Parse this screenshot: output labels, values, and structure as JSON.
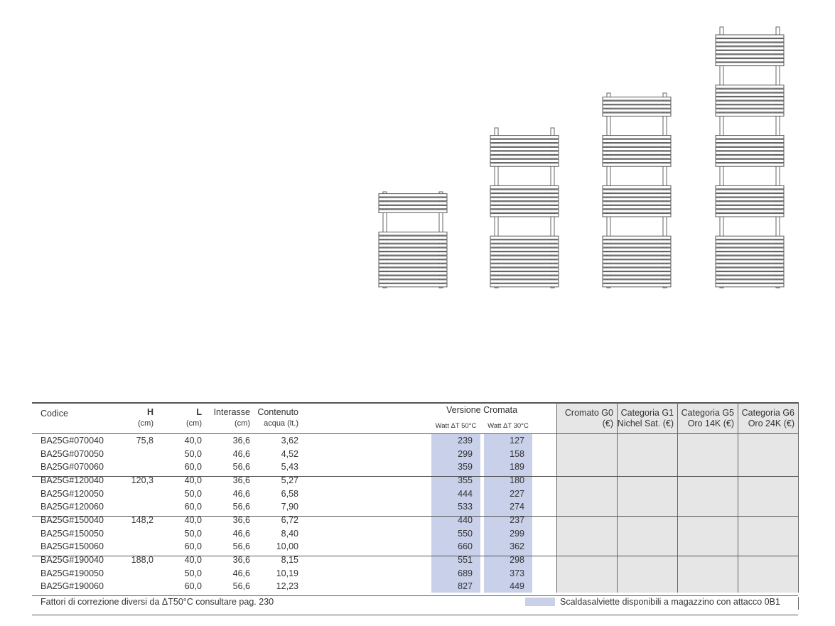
{
  "table": {
    "headers": {
      "codice": "Codice",
      "h": "H",
      "h_unit": "(cm)",
      "l": "L",
      "l_unit": "(cm)",
      "interasse": "Interasse",
      "interasse_unit": "(cm)",
      "contenuto": "Contenuto",
      "contenuto_unit": "acqua (lt.)",
      "versione": "Versione Cromata",
      "watt50": "Watt ΔT 50°C",
      "watt30": "Watt ΔT 30°C",
      "g0_line1": "Cromato G0",
      "g0_line2": "(€)",
      "g1_line1": "Categoria  G1",
      "g1_line2": "Nichel Sat. (€)",
      "g5_line1": "Categoria  G5",
      "g5_line2": "Oro 14K (€)",
      "g6_line1": "Categoria  G6",
      "g6_line2": "Oro 24K (€)"
    },
    "rows": [
      {
        "codice": "BA25G#070040",
        "h": "75,8",
        "l": "40,0",
        "interasse": "36,6",
        "contenuto": "3,62",
        "w50": "239",
        "w30": "127"
      },
      {
        "codice": "BA25G#070050",
        "h": "",
        "l": "50,0",
        "interasse": "46,6",
        "contenuto": "4,52",
        "w50": "299",
        "w30": "158"
      },
      {
        "codice": "BA25G#070060",
        "h": "",
        "l": "60,0",
        "interasse": "56,6",
        "contenuto": "5,43",
        "w50": "359",
        "w30": "189"
      },
      {
        "codice": "BA25G#120040",
        "h": "120,3",
        "l": "40,0",
        "interasse": "36,6",
        "contenuto": "5,27",
        "w50": "355",
        "w30": "180"
      },
      {
        "codice": "BA25G#120050",
        "h": "",
        "l": "50,0",
        "interasse": "46,6",
        "contenuto": "6,58",
        "w50": "444",
        "w30": "227"
      },
      {
        "codice": "BA25G#120060",
        "h": "",
        "l": "60,0",
        "interasse": "56,6",
        "contenuto": "7,90",
        "w50": "533",
        "w30": "274"
      },
      {
        "codice": "BA25G#150040",
        "h": "148,2",
        "l": "40,0",
        "interasse": "36,6",
        "contenuto": "6,72",
        "w50": "440",
        "w30": "237"
      },
      {
        "codice": "BA25G#150050",
        "h": "",
        "l": "50,0",
        "interasse": "46,6",
        "contenuto": "8,40",
        "w50": "550",
        "w30": "299"
      },
      {
        "codice": "BA25G#150060",
        "h": "",
        "l": "60,0",
        "interasse": "56,6",
        "contenuto": "10,00",
        "w50": "660",
        "w30": "362"
      },
      {
        "codice": "BA25G#190040",
        "h": "188,0",
        "l": "40,0",
        "interasse": "36,6",
        "contenuto": "8,15",
        "w50": "551",
        "w30": "298"
      },
      {
        "codice": "BA25G#190050",
        "h": "",
        "l": "50,0",
        "interasse": "46,6",
        "contenuto": "10,19",
        "w50": "689",
        "w30": "373"
      },
      {
        "codice": "BA25G#190060",
        "h": "",
        "l": "60,0",
        "interasse": "56,6",
        "contenuto": "12,23",
        "w50": "827",
        "w30": "449"
      }
    ]
  },
  "footer": {
    "note": "Fattori di correzione diversi da ΔT50°C consultare pag. 230",
    "legend": "Scaldasalviette disponibili a magazzino con attacco 0B1"
  },
  "colors": {
    "highlight": "#c9d0ea",
    "price_bg": "#e6e6e6",
    "line": "#555555"
  }
}
